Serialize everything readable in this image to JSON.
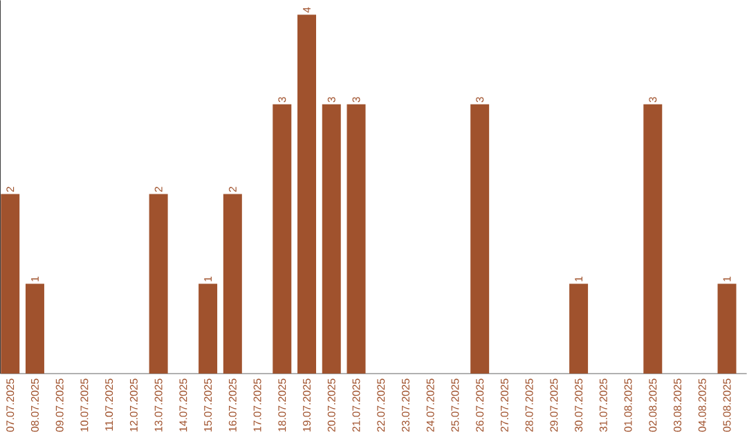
{
  "chart_data": {
    "type": "bar",
    "categories": [
      "07.07.2025",
      "08.07.2025",
      "09.07.2025",
      "10.07.2025",
      "11.07.2025",
      "12.07.2025",
      "13.07.2025",
      "14.07.2025",
      "15.07.2025",
      "16.07.2025",
      "17.07.2025",
      "18.07.2025",
      "19.07.2025",
      "20.07.2025",
      "21.07.2025",
      "22.07.2025",
      "23.07.2025",
      "24.07.2025",
      "25.07.2025",
      "26.07.2025",
      "27.07.2025",
      "28.07.2025",
      "29.07.2025",
      "30.07.2025",
      "31.07.2025",
      "01.08.2025",
      "02.08.2025",
      "03.08.2025",
      "04.08.2025",
      "05.08.2025"
    ],
    "values": [
      2,
      1,
      0,
      0,
      0,
      0,
      2,
      0,
      1,
      2,
      0,
      3,
      4,
      3,
      3,
      0,
      0,
      0,
      0,
      3,
      0,
      0,
      0,
      1,
      0,
      0,
      3,
      0,
      0,
      1
    ],
    "value_labels": [
      "2",
      "1",
      null,
      null,
      null,
      null,
      "2",
      null,
      "1",
      "2",
      null,
      "3",
      "4",
      "3",
      "3",
      null,
      null,
      null,
      null,
      "3",
      null,
      null,
      null,
      "1",
      null,
      null,
      "3",
      null,
      null,
      "1"
    ],
    "color": "#a0522d",
    "grid": false
  }
}
